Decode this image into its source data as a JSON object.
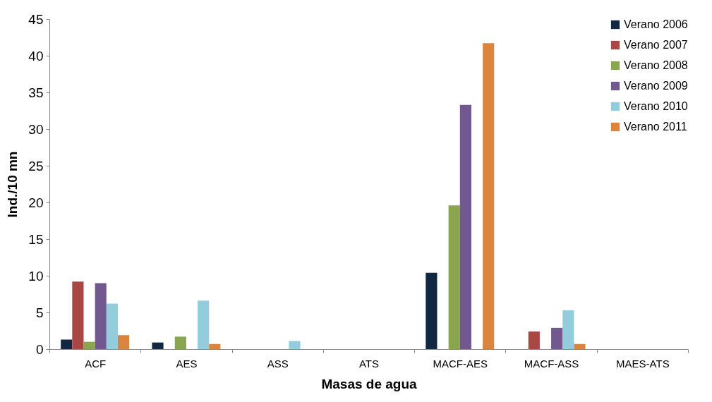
{
  "chart_data": {
    "type": "bar",
    "xlabel": "Masas de agua",
    "ylabel": "Ind./10 mn",
    "categories": [
      "ACF",
      "AES",
      "ASS",
      "ATS",
      "MACF-AES",
      "MACF-ASS",
      "MAES-ATS"
    ],
    "series": [
      {
        "name": "Verano 2006",
        "color": "#122741",
        "values": [
          1.3,
          0.9,
          null,
          null,
          10.4,
          null,
          null
        ]
      },
      {
        "name": "Verano 2007",
        "color": "#a84744",
        "values": [
          9.2,
          null,
          null,
          null,
          null,
          2.4,
          null
        ]
      },
      {
        "name": "Verano 2008",
        "color": "#89a54e",
        "values": [
          1.0,
          1.7,
          null,
          null,
          19.6,
          null,
          null
        ]
      },
      {
        "name": "Verano 2009",
        "color": "#71598f",
        "values": [
          9.0,
          null,
          null,
          null,
          33.3,
          2.9,
          null
        ]
      },
      {
        "name": "Verano 2010",
        "color": "#93cddd",
        "values": [
          6.2,
          6.6,
          1.1,
          null,
          null,
          5.3,
          null
        ]
      },
      {
        "name": "Verano 2011",
        "color": "#db843d",
        "values": [
          1.9,
          0.7,
          null,
          null,
          41.7,
          0.7,
          null
        ]
      }
    ],
    "ylim": [
      0,
      45
    ],
    "yticks": [
      0,
      5,
      10,
      15,
      20,
      25,
      30,
      35,
      40,
      45
    ],
    "grid": false,
    "legend": "top right"
  }
}
